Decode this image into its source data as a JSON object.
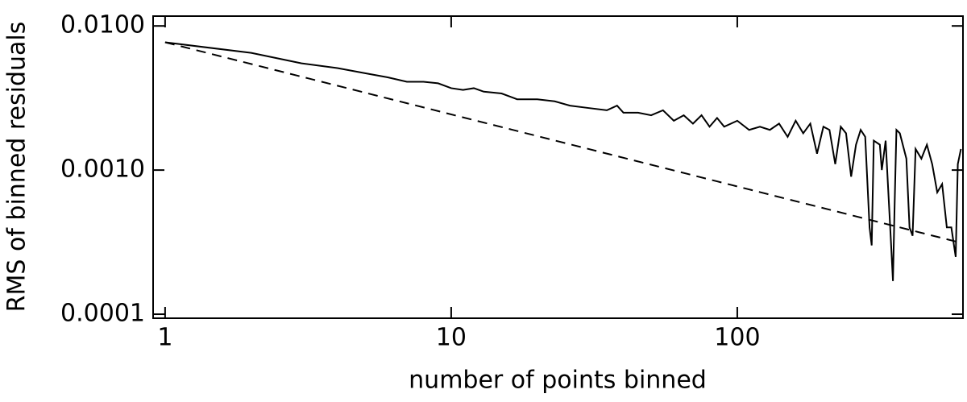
{
  "chart_data": {
    "type": "line",
    "xlabel": "number of points binned",
    "ylabel": "RMS of binned residuals",
    "xscale": "log",
    "yscale": "log",
    "xlim": [
      0.908,
      615
    ],
    "ylim": [
      9.38e-05,
      0.0117
    ],
    "xticks": [
      1,
      10,
      100
    ],
    "yticks": [
      {
        "value": 0.0001,
        "label": "0.0001"
      },
      {
        "value": 0.001,
        "label": "0.0010"
      },
      {
        "value": 0.01,
        "label": "0.0100"
      }
    ],
    "series": [
      {
        "color": "#000000",
        "linestyle": "solid",
        "x": [
          1,
          2,
          3,
          4,
          5,
          6,
          7,
          8,
          9,
          10,
          11,
          12,
          13,
          15,
          17,
          20,
          23,
          26,
          30,
          35,
          38,
          40,
          45,
          50,
          55,
          60,
          65,
          70,
          75,
          80,
          85,
          90,
          100,
          110,
          120,
          130,
          140,
          150,
          160,
          170,
          180,
          190,
          200,
          210,
          220,
          230,
          240,
          250,
          260,
          270,
          280,
          290,
          295,
          300,
          315,
          320,
          330,
          345,
          350,
          355,
          360,
          370,
          390,
          400,
          410,
          420,
          440,
          460,
          480,
          500,
          520,
          540,
          560,
          580,
          590,
          605
        ],
        "values": [
          0.0077,
          0.0065,
          0.0055,
          0.0051,
          0.0047,
          0.0044,
          0.0041,
          0.0041,
          0.004,
          0.0037,
          0.0036,
          0.0037,
          0.0035,
          0.0034,
          0.0031,
          0.0031,
          0.003,
          0.0028,
          0.0027,
          0.0026,
          0.0028,
          0.0025,
          0.0025,
          0.0024,
          0.0026,
          0.0022,
          0.0024,
          0.0021,
          0.0024,
          0.002,
          0.0023,
          0.002,
          0.0022,
          0.0019,
          0.002,
          0.0019,
          0.0021,
          0.0017,
          0.0022,
          0.0018,
          0.0021,
          0.0013,
          0.002,
          0.0019,
          0.0011,
          0.002,
          0.0018,
          0.0009,
          0.0015,
          0.0019,
          0.0017,
          0.0004,
          0.0003,
          0.0016,
          0.0015,
          0.001,
          0.0016,
          0.0003,
          0.00017,
          0.0006,
          0.0019,
          0.0018,
          0.0012,
          0.0004,
          0.00035,
          0.0014,
          0.0012,
          0.0015,
          0.0011,
          0.0007,
          0.0008,
          0.0004,
          0.0004,
          0.00025,
          0.0011,
          0.0014
        ]
      },
      {
        "color": "#000000",
        "linestyle": "dashed",
        "x": [
          1,
          605
        ],
        "values": [
          0.0077,
          0.000313
        ]
      }
    ]
  }
}
